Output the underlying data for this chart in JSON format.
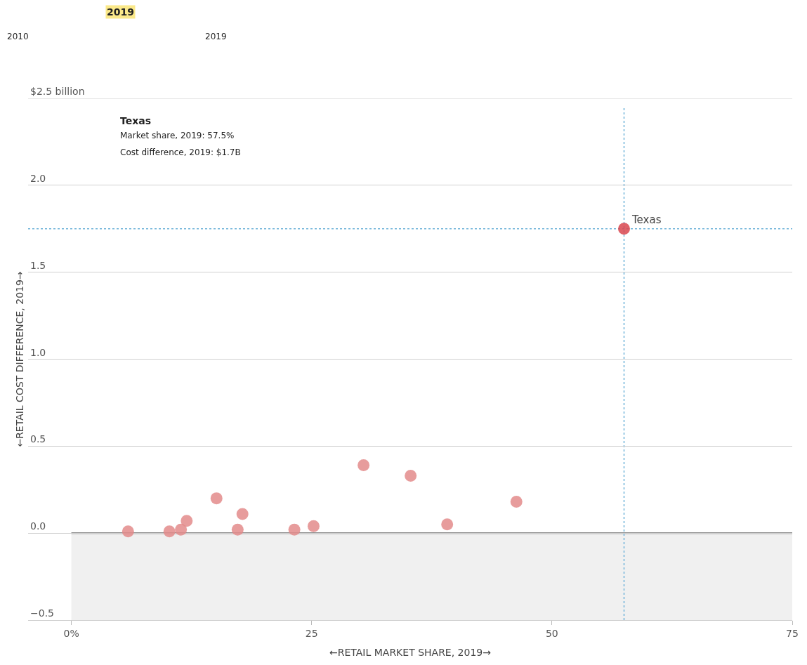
{
  "chart_data": {
    "type": "scatter",
    "xlabel": "←RETAIL MARKET SHARE, 2019→",
    "ylabel": "←RETAIL COST DIFFERENCE, 2019→",
    "x": [
      5.9,
      10.2,
      11.4,
      12.0,
      15.1,
      17.3,
      17.8,
      23.2,
      25.2,
      30.4,
      35.3,
      39.1,
      46.3,
      57.5
    ],
    "values": [
      0.01,
      0.01,
      0.02,
      0.07,
      0.2,
      0.02,
      0.11,
      0.02,
      0.04,
      0.39,
      0.33,
      0.05,
      0.18,
      1.75
    ],
    "colors": [
      "#e38b8b",
      "#e38b8b",
      "#e38b8b",
      "#e38b8b",
      "#e38b8b",
      "#e38b8b",
      "#e38b8b",
      "#e38b8b",
      "#e38b8b",
      "#e38b8b",
      "#e38b8b",
      "#e38b8b",
      "#e38b8b",
      "#d9474f"
    ],
    "marker": "circle",
    "xlim": [
      -4.5,
      75
    ],
    "ylim": [
      -0.5,
      2.5
    ],
    "xticks": [
      {
        "value": 0,
        "label": "0%"
      },
      25,
      50,
      75
    ],
    "yticks": [
      {
        "value": -0.5,
        "label": "−0.5"
      },
      {
        "value": 0,
        "label": "0.0"
      },
      {
        "value": 0.5,
        "label": "0.5"
      },
      {
        "value": 1,
        "label": "1.0"
      },
      {
        "value": 1.5,
        "label": "1.5"
      },
      {
        "value": 2,
        "label": "2.0"
      },
      {
        "value": 2.5,
        "label": "$2.5 billion"
      }
    ],
    "grid": "y",
    "bands": [
      {
        "axis": "y",
        "from": -0.5,
        "to": 0,
        "color": "#f0f0f0"
      }
    ],
    "ref_lines": [
      {
        "axis": "y",
        "value": 0,
        "color": "#666666",
        "line_style": "solid"
      },
      {
        "axis": "x",
        "value": 57.5,
        "color": "#6fb3d9",
        "line_style": "dotted"
      },
      {
        "axis": "y",
        "value": 1.75,
        "color": "#6fb3d9",
        "line_style": "dotted"
      }
    ],
    "annotations": [
      "2019",
      "2010",
      "2019",
      "Texas",
      "Market share, 2019: 57.5%",
      "Cost difference, 2019: $1.7B",
      {
        "text": "Texas",
        "x": 57.5,
        "y": 1.75
      }
    ]
  }
}
